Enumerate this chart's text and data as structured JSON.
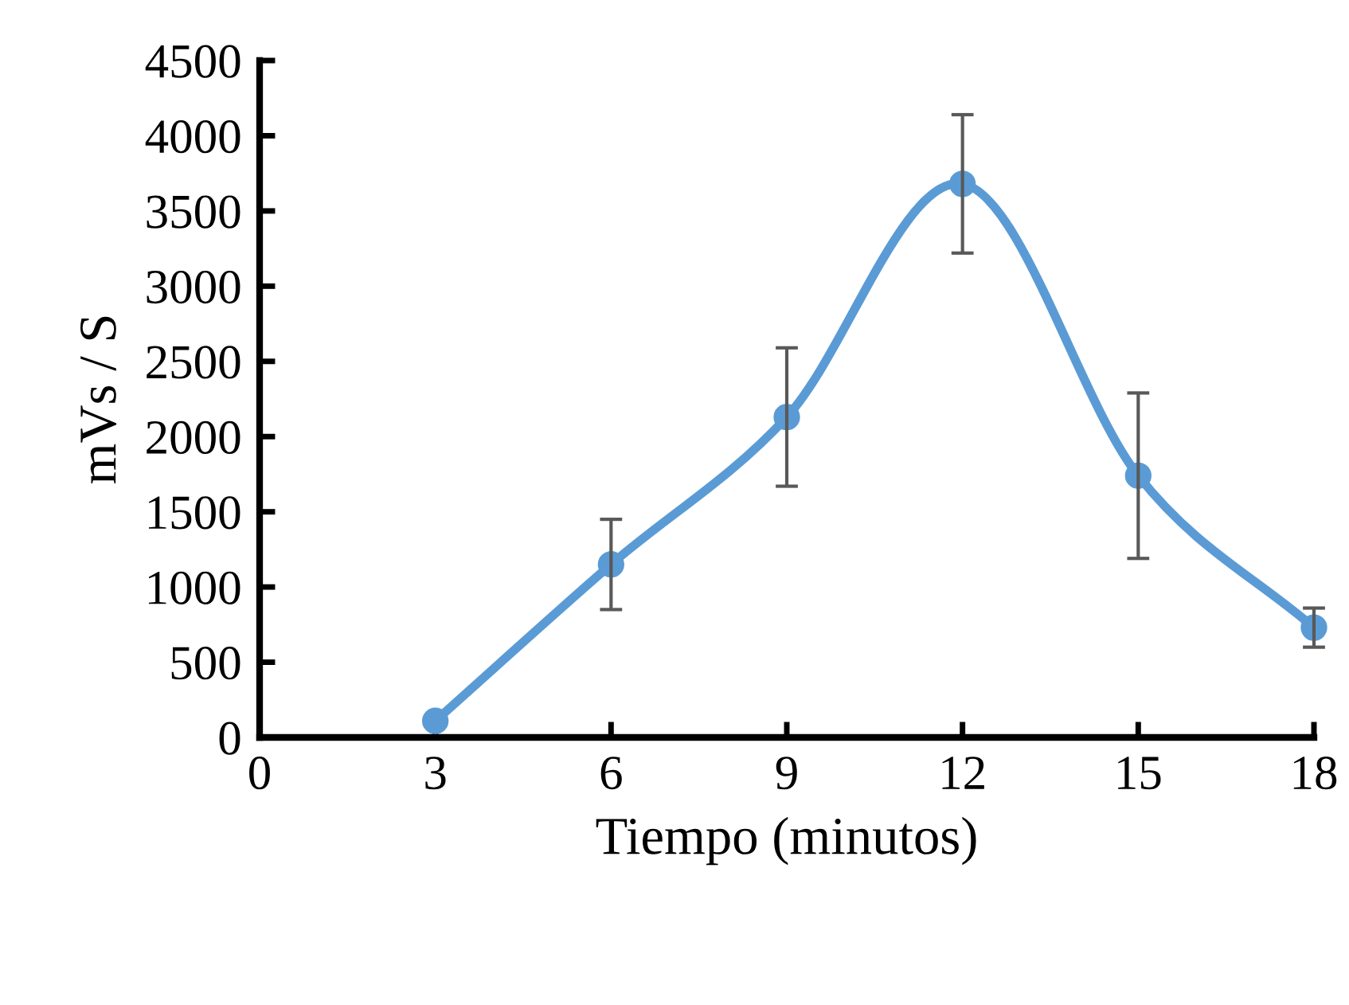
{
  "chart_data": {
    "type": "line",
    "xlabel": "Tiempo (minutos)",
    "ylabel": "mVs / S",
    "x": [
      3,
      6,
      9,
      12,
      15,
      18
    ],
    "series": [
      {
        "color": "#5b9bd5",
        "values": [
          110,
          1150,
          2130,
          3680,
          1740,
          730
        ],
        "errors": [
          null,
          300,
          460,
          460,
          550,
          130
        ]
      }
    ],
    "xlim": [
      0,
      18
    ],
    "xticks": [
      0,
      3,
      6,
      9,
      12,
      15,
      18
    ],
    "ylim": [
      0,
      4500
    ],
    "yticks": [
      0,
      500,
      1000,
      1500,
      2000,
      2500,
      3000,
      3500,
      4000,
      4500
    ],
    "marker": "circle",
    "line_style": "solid",
    "grid": false
  }
}
